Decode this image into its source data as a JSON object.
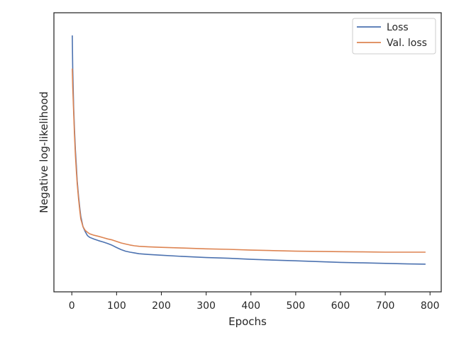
{
  "chart_data": {
    "type": "line",
    "xlabel": "Epochs",
    "ylabel": "Negative log-likelihood",
    "xlim": [
      -40,
      825
    ],
    "ylim": [
      0,
      1
    ],
    "y_ticks_shown": false,
    "x_ticks": [
      "0",
      "100",
      "200",
      "300",
      "400",
      "500",
      "600",
      "700",
      "800"
    ],
    "grid": false,
    "legend_position": "top-right",
    "series": [
      {
        "name": "Loss",
        "color": "#4c72b0",
        "x": [
          1,
          2,
          4,
          6,
          8,
          10,
          12,
          15,
          18,
          20,
          25,
          30,
          35,
          40,
          50,
          60,
          70,
          80,
          90,
          100,
          110,
          120,
          130,
          140,
          150,
          170,
          200,
          250,
          300,
          350,
          400,
          450,
          500,
          550,
          600,
          650,
          700,
          750,
          790
        ],
        "values": [
          0.95,
          0.82,
          0.67,
          0.58,
          0.5,
          0.44,
          0.38,
          0.32,
          0.27,
          0.24,
          0.2,
          0.18,
          0.165,
          0.158,
          0.151,
          0.145,
          0.14,
          0.134,
          0.127,
          0.118,
          0.11,
          0.104,
          0.1,
          0.097,
          0.094,
          0.091,
          0.088,
          0.083,
          0.079,
          0.076,
          0.072,
          0.069,
          0.066,
          0.063,
          0.06,
          0.058,
          0.056,
          0.054,
          0.053
        ]
      },
      {
        "name": "Val. loss",
        "color": "#dd8452",
        "x": [
          1,
          2,
          4,
          6,
          8,
          10,
          12,
          15,
          18,
          20,
          25,
          30,
          35,
          40,
          50,
          60,
          70,
          80,
          90,
          100,
          110,
          120,
          130,
          140,
          150,
          170,
          200,
          250,
          300,
          350,
          400,
          450,
          500,
          550,
          600,
          650,
          700,
          750,
          790
        ],
        "values": [
          0.82,
          0.75,
          0.65,
          0.56,
          0.48,
          0.42,
          0.37,
          0.31,
          0.26,
          0.23,
          0.2,
          0.185,
          0.178,
          0.172,
          0.166,
          0.162,
          0.157,
          0.152,
          0.148,
          0.142,
          0.136,
          0.132,
          0.128,
          0.125,
          0.123,
          0.121,
          0.119,
          0.116,
          0.113,
          0.111,
          0.108,
          0.106,
          0.104,
          0.103,
          0.102,
          0.101,
          0.1,
          0.1,
          0.1
        ]
      }
    ]
  }
}
